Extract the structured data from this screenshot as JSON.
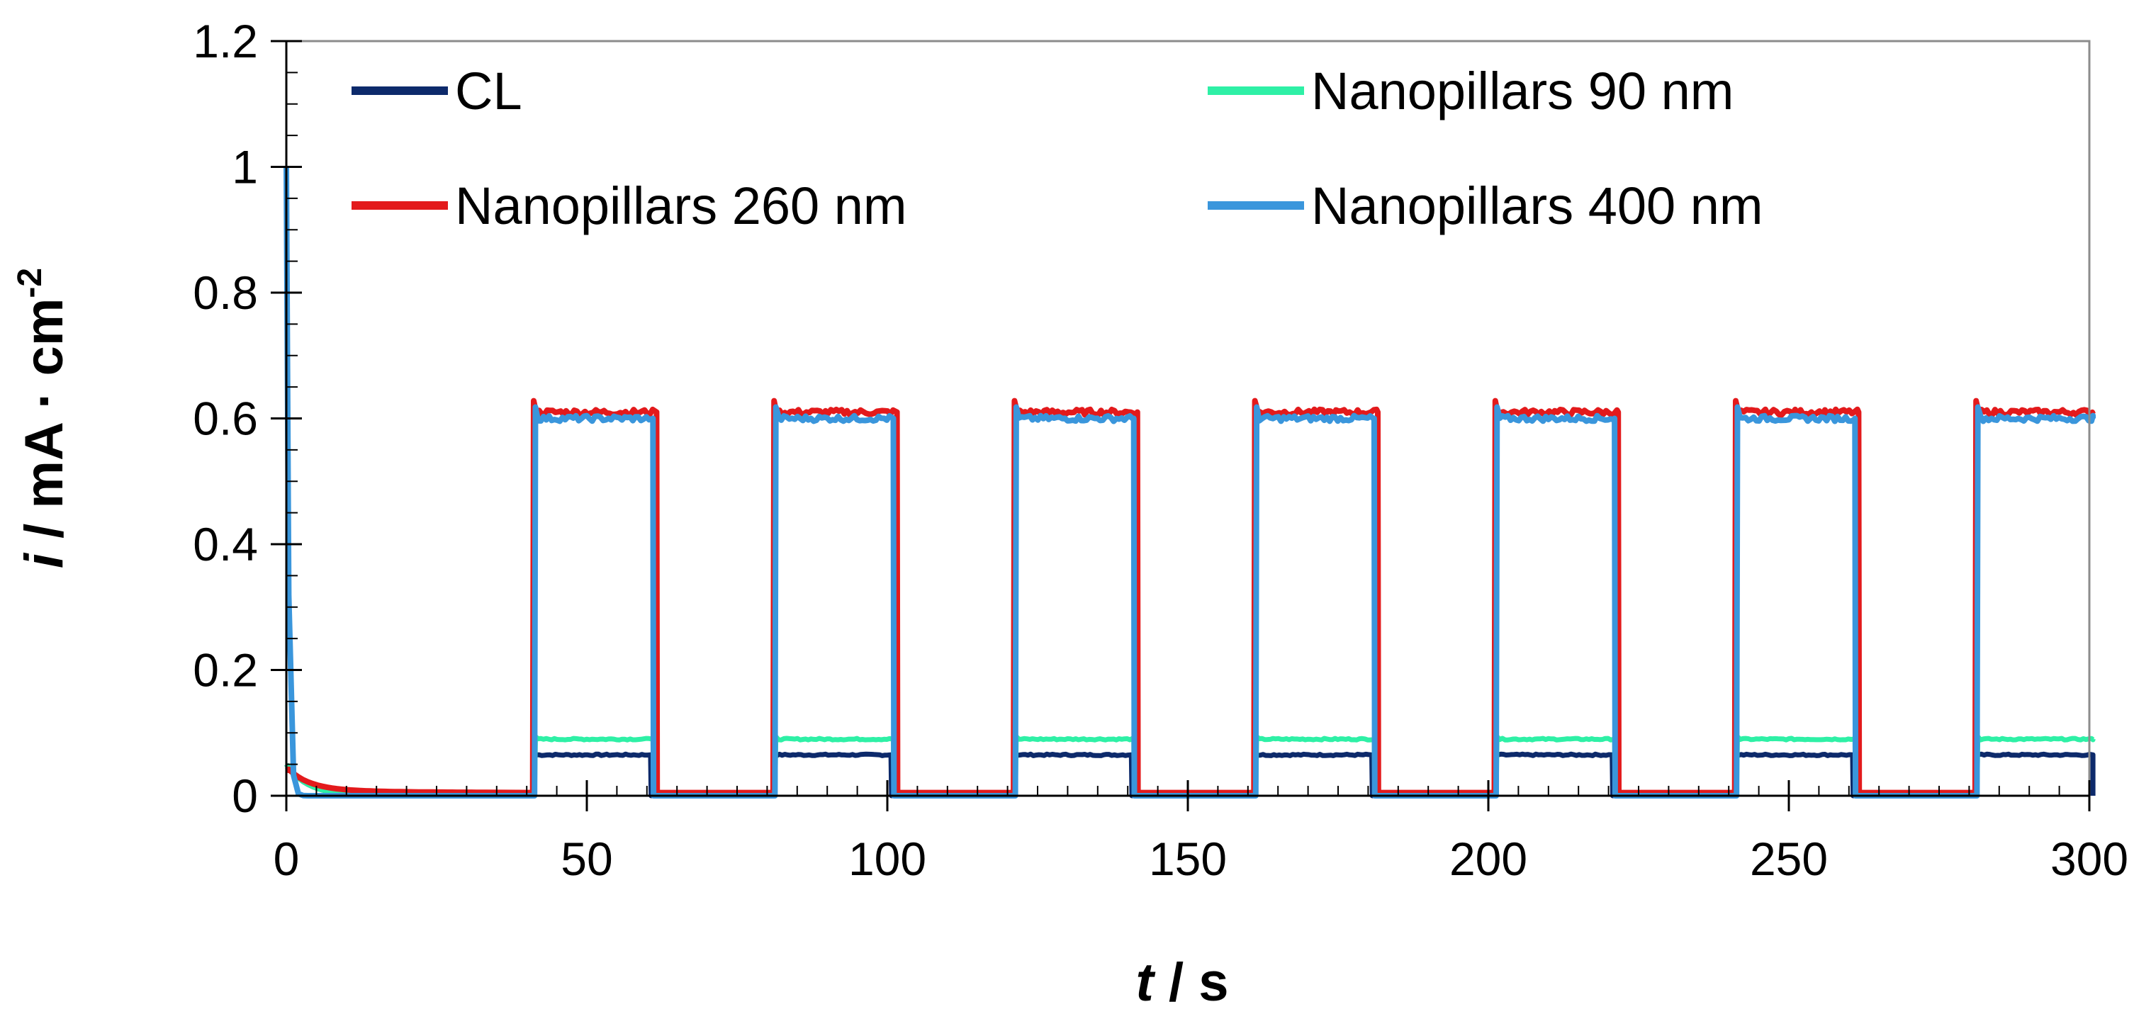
{
  "chart_data": {
    "type": "line",
    "title": "",
    "xlabel": "t / s",
    "ylabel": "i / mA · cm-2",
    "xlabel_parts": {
      "var": "t",
      "rest": " / s"
    },
    "ylabel_parts": {
      "var": "i",
      "rest": " / mA · cm",
      "sup": "-2"
    },
    "xlim": [
      0,
      300
    ],
    "ylim": [
      0,
      1.2
    ],
    "xticks": [
      0,
      50,
      100,
      150,
      200,
      250,
      300
    ],
    "xtick_labels": [
      "0",
      "50",
      "100",
      "150",
      "200",
      "250",
      "300"
    ],
    "yticks": [
      0,
      0.2,
      0.4,
      0.6,
      0.8,
      1,
      1.2
    ],
    "ytick_labels": [
      "0",
      "0.2",
      "0.4",
      "0.6",
      "0.8",
      "1",
      "1.2"
    ],
    "grid": false,
    "legend_position": "top",
    "light_on_intervals": [
      [
        41,
        61
      ],
      [
        81,
        101
      ],
      [
        121,
        141
      ],
      [
        161,
        181
      ],
      [
        201,
        221
      ],
      [
        241,
        261
      ],
      [
        281,
        301
      ]
    ],
    "series": [
      {
        "name": "CL",
        "color": "#0d2a6b",
        "initial_peak": 0.05,
        "dark_value": 0.0,
        "light_value": 0.065
      },
      {
        "name": "Nanopillars 90 nm",
        "color": "#2ef0a6",
        "initial_peak": 0.05,
        "dark_value": 0.0,
        "light_value": 0.09
      },
      {
        "name": "Nanopillars 260 nm",
        "color": "#e31a1c",
        "initial_peak": 0.04,
        "dark_value": 0.005,
        "light_value": 0.61
      },
      {
        "name": "Nanopillars 400 nm",
        "color": "#3a96dc",
        "initial_peak": 1.0,
        "dark_value": 0.0,
        "light_value": 0.6
      }
    ]
  }
}
